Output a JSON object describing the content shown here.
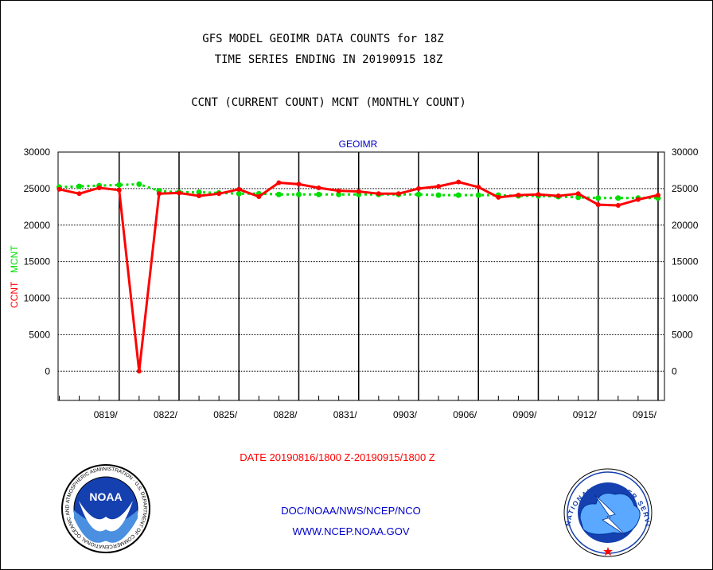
{
  "header": {
    "title_line1": "GFS MODEL GEOIMR DATA COUNTS for 18Z",
    "title_line2": "TIME SERIES ENDING IN 20190915 18Z",
    "subtitle": "CCNT (CURRENT COUNT) MCNT (MONTHLY COUNT)"
  },
  "chart_data": {
    "type": "line",
    "title": "GEOIMR",
    "xlabel": "DATE 20190816/1800 Z-20190915/1800 Z",
    "ylabel_left": [
      "CCNT",
      "MCNT"
    ],
    "ylim": [
      -4000,
      30000
    ],
    "y_ticks": [
      "30000",
      "25000",
      "20000",
      "15000",
      "10000",
      "5000",
      "0"
    ],
    "y_tick_values": [
      30000,
      25000,
      20000,
      15000,
      10000,
      5000,
      0
    ],
    "x_ticks": [
      "0819/",
      "0822/",
      "0825/",
      "0828/",
      "0831/",
      "0903/",
      "0906/",
      "0909/",
      "0912/",
      "0915/"
    ],
    "x_tick_days": [
      3,
      6,
      9,
      12,
      15,
      18,
      21,
      24,
      27,
      30
    ],
    "x_range_days": [
      -0.06,
      30.32
    ],
    "x_unit": "days after 20190816/1800 Z",
    "grid": true,
    "series": [
      {
        "name": "CCNT",
        "color": "#ff0000",
        "x": [
          0,
          1,
          2,
          3,
          4,
          5,
          6,
          7,
          8,
          9,
          10,
          11,
          12,
          13,
          14,
          15,
          16,
          17,
          18,
          19,
          20,
          21,
          22,
          23,
          24,
          25,
          26,
          27,
          28,
          29,
          30
        ],
        "values": [
          24900,
          24300,
          25100,
          24800,
          0,
          24300,
          24400,
          24000,
          24300,
          24900,
          23900,
          25800,
          25600,
          25100,
          24700,
          24600,
          24300,
          24300,
          25000,
          25300,
          25900,
          25200,
          23800,
          24100,
          24200,
          24000,
          24300,
          22800,
          22700,
          23500,
          24100
        ]
      },
      {
        "name": "MCNT",
        "color": "#00dd00",
        "x": [
          0,
          1,
          2,
          3,
          4,
          5,
          6,
          7,
          8,
          9,
          10,
          11,
          12,
          13,
          14,
          15,
          16,
          17,
          18,
          19,
          20,
          21,
          22,
          23,
          24,
          25,
          26,
          27,
          28,
          29,
          30
        ],
        "values": [
          25200,
          25300,
          25400,
          25500,
          25600,
          24700,
          24500,
          24500,
          24400,
          24300,
          24300,
          24200,
          24200,
          24200,
          24200,
          24200,
          24200,
          24200,
          24200,
          24100,
          24100,
          24100,
          24100,
          24000,
          24000,
          23900,
          23800,
          23700,
          23700,
          23700,
          23700
        ]
      }
    ]
  },
  "footer": {
    "line1": "DOC/NOAA/NWS/NCEP/NCO",
    "line2": "WWW.NCEP.NOAA.GOV",
    "noaa_logo_text": "NOAA",
    "noaa_ring_text": "NATIONAL OCEANIC AND ATMOSPHERIC ADMINISTRATION · U.S. DEPARTMENT OF COMMERCE ·",
    "nws_ring_text": "NATIONAL WEATHER SERVICE"
  },
  "colors": {
    "title_text": "#000000",
    "axis_title": "#0000cc",
    "footer_text": "#0000cc",
    "date_text": "#ff0000",
    "ccnt": "#ff0000",
    "mcnt": "#00dd00"
  }
}
